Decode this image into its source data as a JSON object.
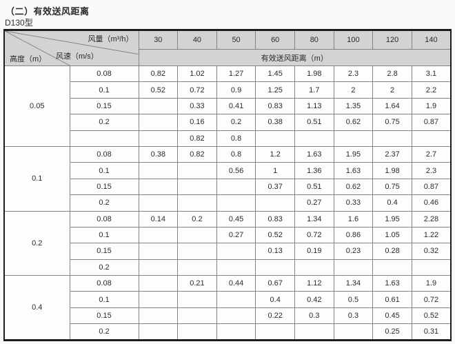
{
  "page": {
    "title": "（二）有效送风距离",
    "subtitle": "D130型"
  },
  "colors": {
    "header_bg": "#d3d3d3",
    "cell_bg": "#fdfdfd",
    "outer_border": "#1c1c1c",
    "grid_line": "#828282",
    "text": "#2a2a2a"
  },
  "table": {
    "corner": {
      "airflow_label": "风量（m³/h）",
      "speed_label": "风速（m/s）",
      "height_label": "高度（m）"
    },
    "airflow_columns": [
      "30",
      "40",
      "50",
      "60",
      "80",
      "100",
      "120",
      "140"
    ],
    "distance_header": "有效送风距离（m）",
    "groups": [
      {
        "height": "0.05",
        "rows": [
          {
            "speed": "0.08",
            "values": [
              "0.82",
              "1.02",
              "1.27",
              "1.45",
              "1.98",
              "2.3",
              "2.8",
              "3.1"
            ]
          },
          {
            "speed": "0.1",
            "values": [
              "0.52",
              "0.72",
              "0.9",
              "1.25",
              "1.7",
              "2",
              "2",
              "2.2"
            ]
          },
          {
            "speed": "0.15",
            "values": [
              "",
              "0.33",
              "0.41",
              "0.83",
              "1.13",
              "1.35",
              "1.64",
              "1.9"
            ]
          },
          {
            "speed": "0.2",
            "values": [
              "",
              "0.16",
              "0.2",
              "0.38",
              "0.51",
              "0.62",
              "0.75",
              "0.87"
            ]
          },
          {
            "speed": "",
            "values": [
              "",
              "0.82",
              "0.8",
              "",
              "",
              "",
              "",
              ""
            ]
          }
        ]
      },
      {
        "height": "0.1",
        "rows": [
          {
            "speed": "0.08",
            "values": [
              "0.38",
              "0.82",
              "0.8",
              "1.2",
              "1.63",
              "1.95",
              "2.37",
              "2.7"
            ]
          },
          {
            "speed": "0.1",
            "values": [
              "",
              "",
              "0.56",
              "1",
              "1.36",
              "1.63",
              "1.98",
              "2.3"
            ]
          },
          {
            "speed": "0.15",
            "values": [
              "",
              "",
              "",
              "0.37",
              "0.51",
              "0.62",
              "0.75",
              "0.87"
            ]
          },
          {
            "speed": "0.2",
            "values": [
              "",
              "",
              "",
              "",
              "0.27",
              "0.33",
              "0.4",
              "0.46"
            ]
          }
        ]
      },
      {
        "height": "0.2",
        "rows": [
          {
            "speed": "0.08",
            "values": [
              "0.14",
              "0.2",
              "0.45",
              "0.83",
              "1.34",
              "1.6",
              "1.95",
              "2.28"
            ]
          },
          {
            "speed": "0.1",
            "values": [
              "",
              "",
              "0.27",
              "0.52",
              "0.72",
              "0.86",
              "1.05",
              "1.22"
            ]
          },
          {
            "speed": "0.15",
            "values": [
              "",
              "",
              "",
              "0.13",
              "0.19",
              "0.23",
              "0.28",
              "0.32"
            ]
          },
          {
            "speed": "0.2",
            "values": [
              "",
              "",
              "",
              "",
              "",
              "",
              "",
              ""
            ]
          }
        ]
      },
      {
        "height": "0.4",
        "rows": [
          {
            "speed": "0.08",
            "values": [
              "",
              "0.21",
              "0.44",
              "0.67",
              "1.12",
              "1.34",
              "1.63",
              "1.9"
            ]
          },
          {
            "speed": "0.1",
            "values": [
              "",
              "",
              "",
              "0.4",
              "0.42",
              "0.5",
              "0.61",
              "0.72"
            ]
          },
          {
            "speed": "0.15",
            "values": [
              "",
              "",
              "",
              "0.22",
              "0.3",
              "0.3",
              "0.45",
              "0.52"
            ]
          },
          {
            "speed": "0.2",
            "values": [
              "",
              "",
              "",
              "",
              "",
              "",
              "0.25",
              "0.31"
            ]
          }
        ]
      }
    ]
  }
}
